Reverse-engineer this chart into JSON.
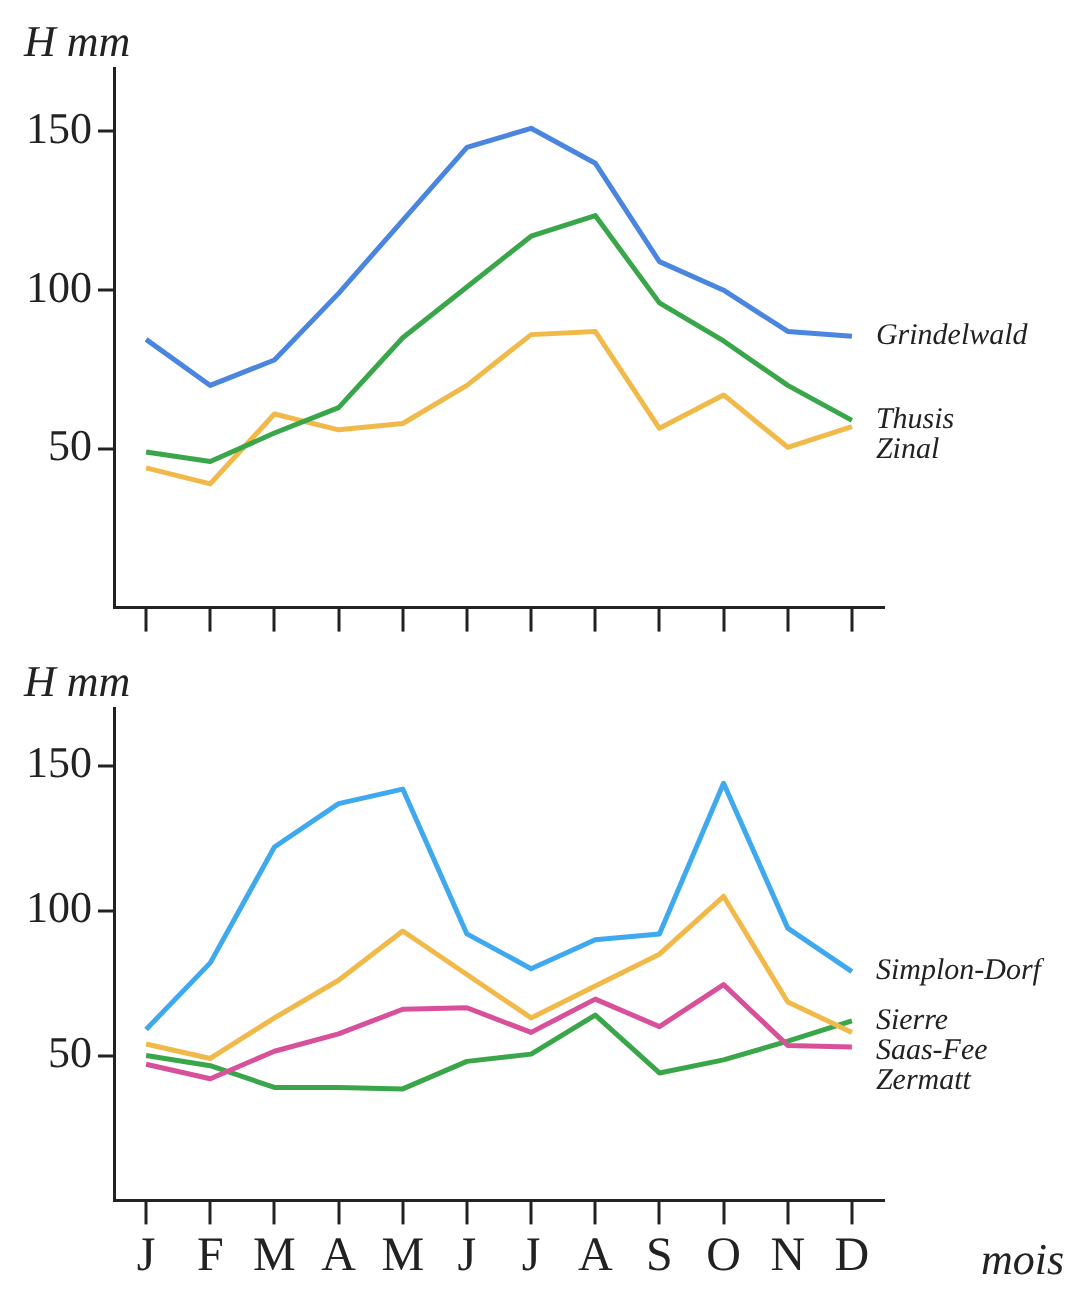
{
  "chart_data": [
    {
      "type": "line",
      "ylabel": "H mm",
      "categories": [
        null,
        null,
        null,
        null,
        null,
        null,
        null,
        null,
        null,
        null,
        null,
        null
      ],
      "ylim": [
        0,
        170
      ],
      "yticks": [
        50,
        100,
        150
      ],
      "tick_labels": "y",
      "legend": false,
      "marker": "none",
      "line_style": "solid",
      "series": [
        {
          "name": "Grindelwald",
          "color": "#4a86e0",
          "values": [
            84.5,
            70,
            78,
            99,
            122,
            145,
            151,
            140,
            109,
            100,
            87,
            85.5
          ]
        },
        {
          "name": "Thusis",
          "color": "#3aa64a",
          "values": [
            49,
            46,
            55,
            63,
            85,
            101,
            117,
            123.5,
            96,
            84,
            70,
            59
          ]
        },
        {
          "name": "Zinal",
          "color": "#f0b94a",
          "values": [
            44,
            39,
            61,
            56,
            58,
            70,
            86,
            87,
            56.5,
            67,
            50.5,
            57
          ]
        }
      ]
    },
    {
      "type": "line",
      "ylabel": "H mm",
      "xlabel": "mois",
      "categories": [
        "J",
        "F",
        "M",
        "A",
        "M",
        "J",
        "J",
        "A",
        "S",
        "O",
        "N",
        "D"
      ],
      "ylim": [
        0,
        170
      ],
      "yticks": [
        50,
        100,
        150
      ],
      "legend": false,
      "marker": "none",
      "line_style": "solid",
      "series": [
        {
          "name": "Simplon-Dorf",
          "color": "#3fa9f0",
          "values": [
            59,
            82,
            122,
            137,
            142,
            92,
            80,
            90,
            92,
            144,
            94,
            79
          ]
        },
        {
          "name": "Saas-Fee",
          "color": "#f0b94a",
          "values": [
            54,
            49,
            63,
            76,
            93,
            78,
            63,
            74,
            85,
            105,
            68.5,
            58
          ]
        },
        {
          "name": "Zermatt",
          "color": "#d9509a",
          "values": [
            47,
            42,
            51.5,
            57.5,
            66,
            66.5,
            58,
            69.5,
            60,
            74.5,
            53.5,
            53
          ]
        },
        {
          "name": "Sierre",
          "color": "#3aa64a",
          "values": [
            50,
            46.5,
            39,
            39,
            38.5,
            48,
            50.5,
            64,
            44,
            48.5,
            55,
            62
          ]
        }
      ]
    }
  ]
}
